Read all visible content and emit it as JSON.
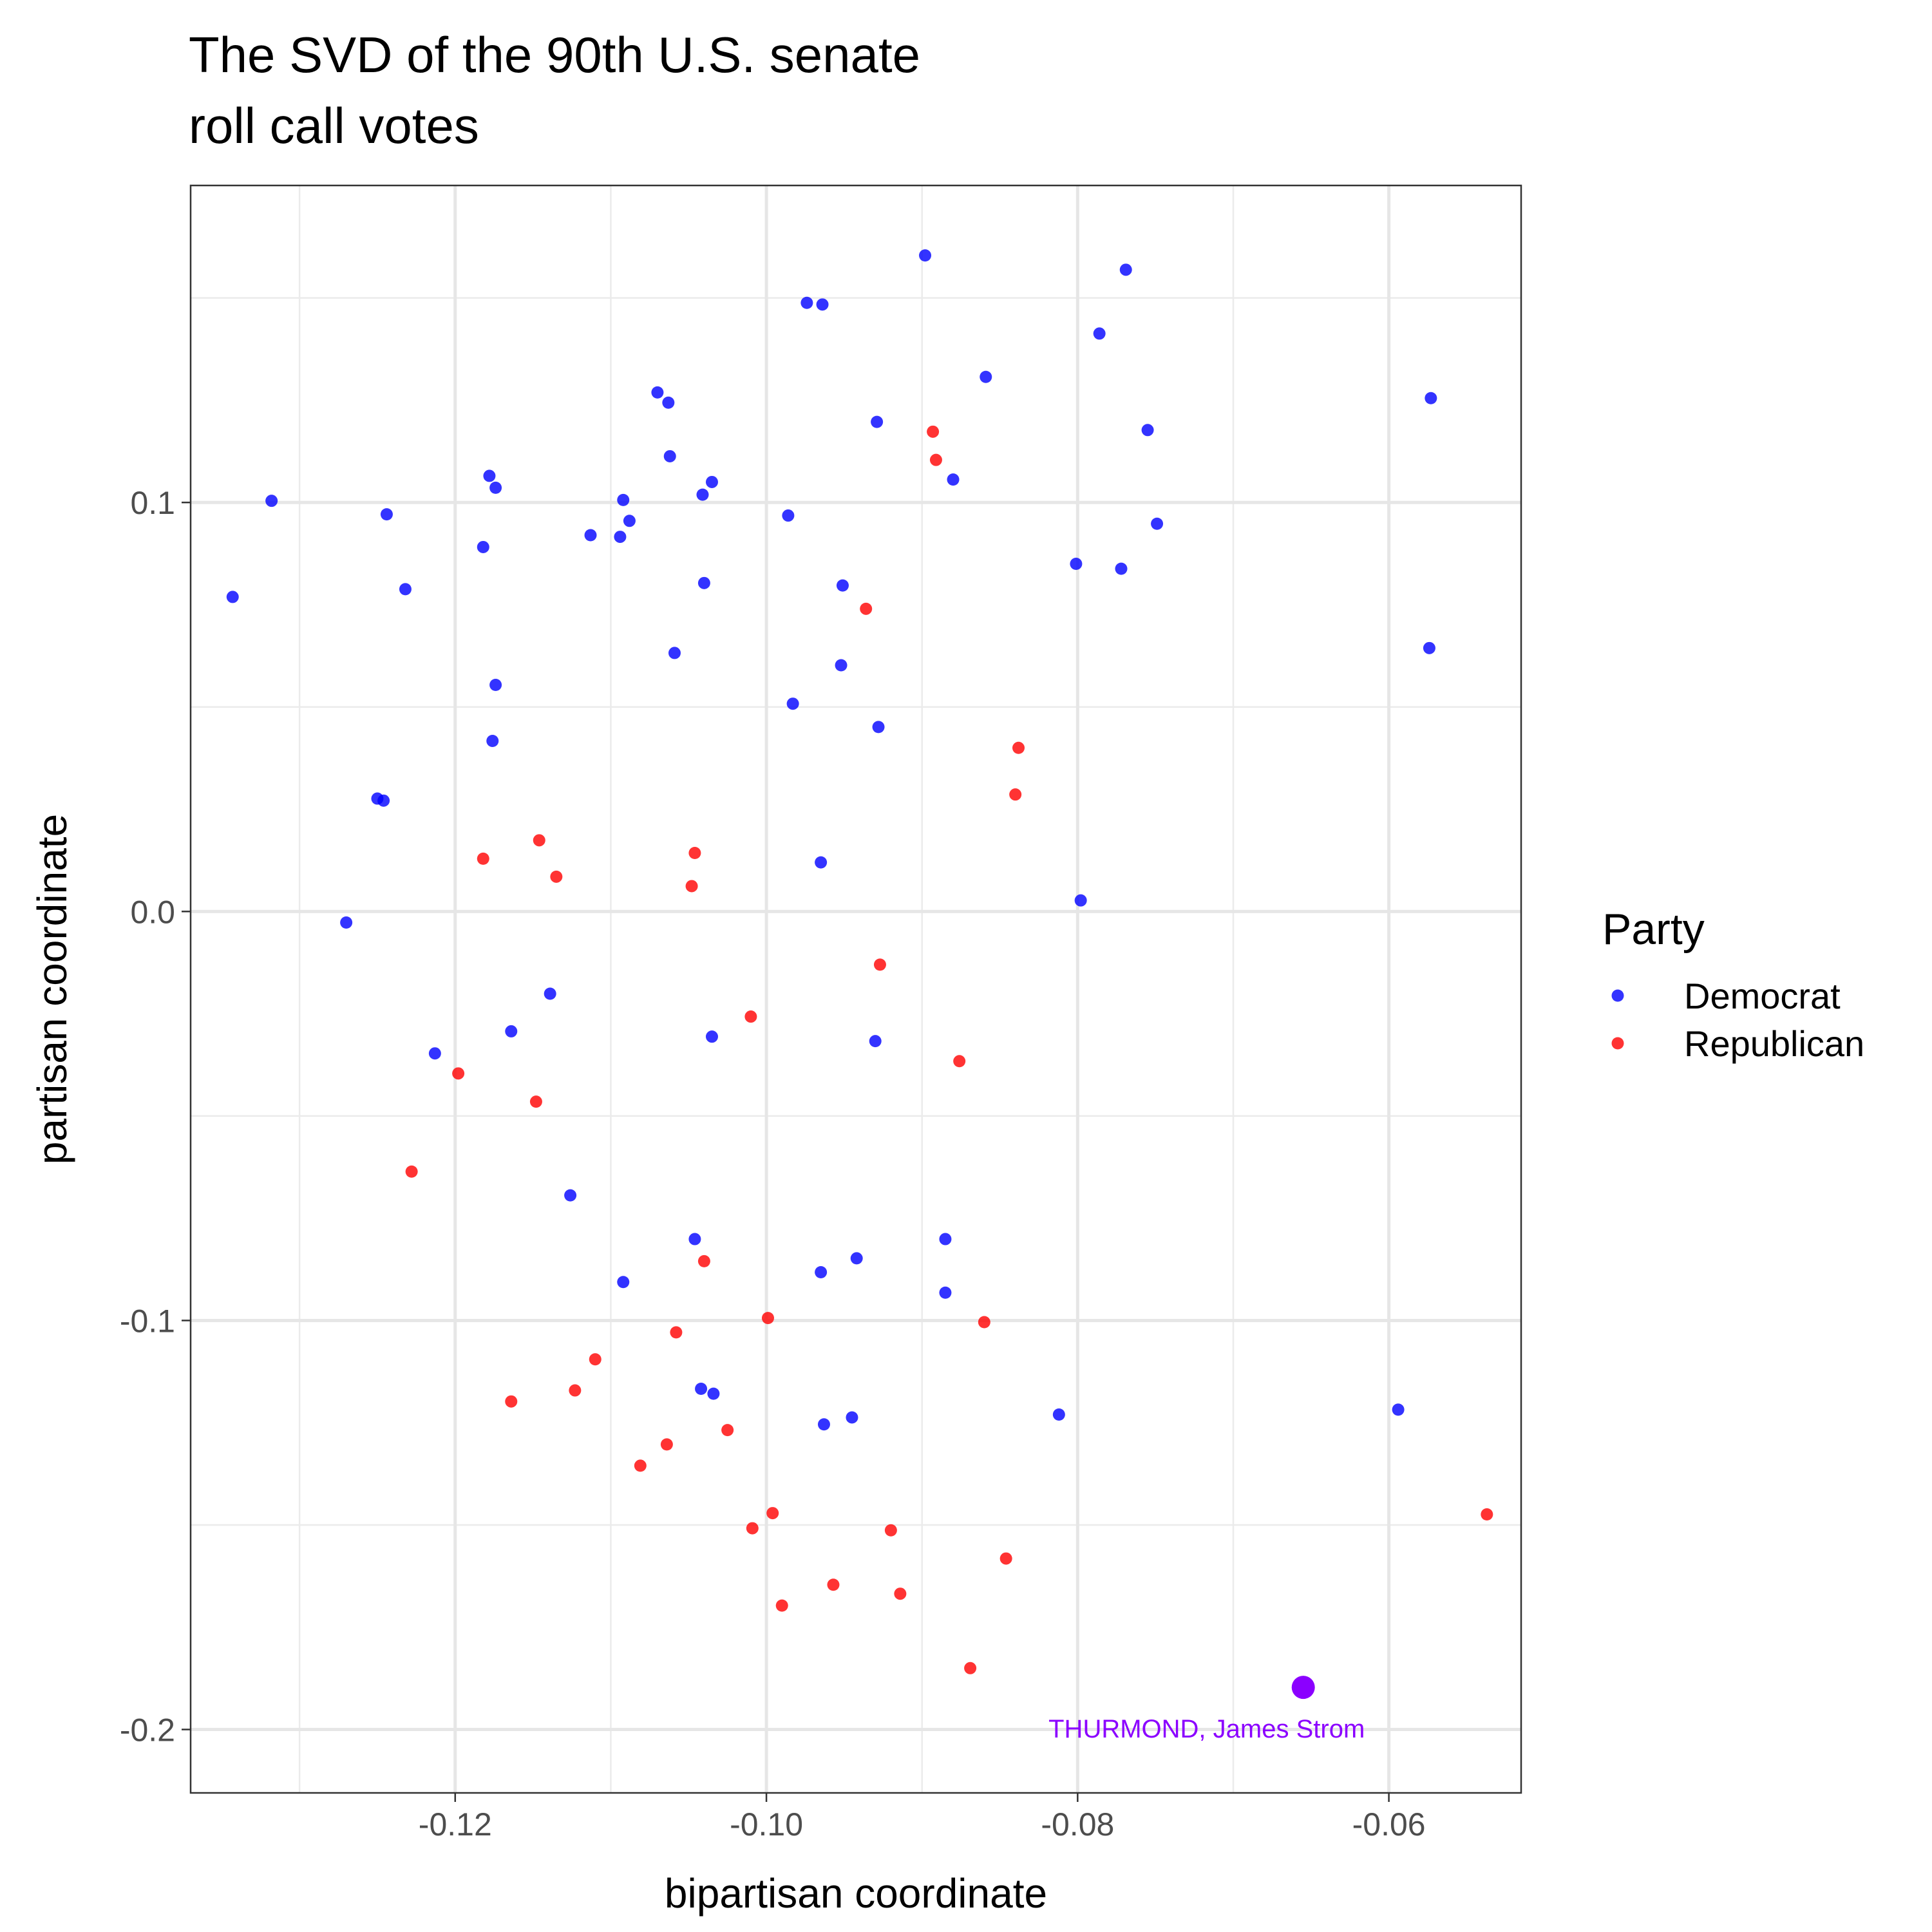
{
  "chart_data": {
    "type": "scatter",
    "title": [
      "The SVD of the 90th U.S. senate",
      "roll call votes"
    ],
    "xlabel": "bipartisan coordinate",
    "ylabel": "partisan coordinate",
    "xlim": [
      -0.137,
      -0.0515
    ],
    "ylim": [
      -0.2155,
      0.1775
    ],
    "x_ticks": [
      -0.12,
      -0.1,
      -0.08,
      -0.06
    ],
    "x_tick_labels": [
      "-0.12",
      "-0.10",
      "-0.08",
      "-0.06"
    ],
    "y_ticks": [
      -0.2,
      -0.1,
      0.0,
      0.1
    ],
    "y_tick_labels": [
      "-0.2",
      "-0.1",
      "0.0",
      "0.1"
    ],
    "grid": true,
    "legend": {
      "title": "Party",
      "position": "right",
      "entries": [
        {
          "label": "Democrat",
          "color": "#0000ff"
        },
        {
          "label": "Republican",
          "color": "#ff0000"
        }
      ]
    },
    "series": [
      {
        "name": "Democrat",
        "color": "#0000ff",
        "points": [
          [
            -0.0898,
            0.1604
          ],
          [
            -0.0769,
            0.1569
          ],
          [
            -0.0974,
            0.1488
          ],
          [
            -0.0964,
            0.1484
          ],
          [
            -0.0786,
            0.1413
          ],
          [
            -0.0859,
            0.1307
          ],
          [
            -0.0573,
            0.1255
          ],
          [
            -0.107,
            0.1269
          ],
          [
            -0.1063,
            0.1244
          ],
          [
            -0.0929,
            0.1197
          ],
          [
            -0.0755,
            0.1177
          ],
          [
            -0.1062,
            0.1113
          ],
          [
            -0.1178,
            0.1065
          ],
          [
            -0.1174,
            0.1036
          ],
          [
            -0.1035,
            0.105
          ],
          [
            -0.088,
            0.1056
          ],
          [
            -0.1318,
            0.1004
          ],
          [
            -0.1041,
            0.1019
          ],
          [
            -0.1092,
            0.1006
          ],
          [
            -0.1244,
            0.0971
          ],
          [
            -0.0986,
            0.0968
          ],
          [
            -0.1088,
            0.0955
          ],
          [
            -0.0749,
            0.0948
          ],
          [
            -0.1113,
            0.092
          ],
          [
            -0.1094,
            0.0916
          ],
          [
            -0.1182,
            0.0891
          ],
          [
            -0.0801,
            0.085
          ],
          [
            -0.0772,
            0.0838
          ],
          [
            -0.1232,
            0.0788
          ],
          [
            -0.104,
            0.0803
          ],
          [
            -0.0951,
            0.0797
          ],
          [
            -0.1343,
            0.0769
          ],
          [
            -0.0574,
            0.0644
          ],
          [
            -0.1059,
            0.0632
          ],
          [
            -0.0952,
            0.0602
          ],
          [
            -0.1174,
            0.0554
          ],
          [
            -0.0983,
            0.0508
          ],
          [
            -0.0928,
            0.0451
          ],
          [
            -0.1176,
            0.0417
          ],
          [
            -0.125,
            0.0276
          ],
          [
            -0.1246,
            0.0271
          ],
          [
            -0.0965,
            0.012
          ],
          [
            -0.0798,
            0.0027
          ],
          [
            -0.127,
            -0.0027
          ],
          [
            -0.1139,
            -0.0201
          ],
          [
            -0.1164,
            -0.0293
          ],
          [
            -0.1035,
            -0.0306
          ],
          [
            -0.093,
            -0.0317
          ],
          [
            -0.1213,
            -0.0347
          ],
          [
            -0.1126,
            -0.0694
          ],
          [
            -0.1046,
            -0.0801
          ],
          [
            -0.0885,
            -0.0801
          ],
          [
            -0.0942,
            -0.0848
          ],
          [
            -0.0965,
            -0.0882
          ],
          [
            -0.1092,
            -0.0906
          ],
          [
            -0.0885,
            -0.0932
          ],
          [
            -0.1042,
            -0.1167
          ],
          [
            -0.1034,
            -0.1179
          ],
          [
            -0.0812,
            -0.123
          ],
          [
            -0.0594,
            -0.1218
          ],
          [
            -0.0945,
            -0.1237
          ],
          [
            -0.0963,
            -0.1254
          ]
        ]
      },
      {
        "name": "Republican",
        "color": "#ff0000",
        "points": [
          [
            -0.0893,
            0.1173
          ],
          [
            -0.0891,
            0.1104
          ],
          [
            -0.0936,
            0.074
          ],
          [
            -0.0838,
            0.04
          ],
          [
            -0.084,
            0.0286
          ],
          [
            -0.1146,
            0.0174
          ],
          [
            -0.1046,
            0.0143
          ],
          [
            -0.1182,
            0.0129
          ],
          [
            -0.1135,
            0.0085
          ],
          [
            -0.1048,
            0.0062
          ],
          [
            -0.0927,
            -0.013
          ],
          [
            -0.101,
            -0.0257
          ],
          [
            -0.0876,
            -0.0366
          ],
          [
            -0.1198,
            -0.0396
          ],
          [
            -0.1148,
            -0.0465
          ],
          [
            -0.1228,
            -0.0636
          ],
          [
            -0.104,
            -0.0855
          ],
          [
            -0.0999,
            -0.0994
          ],
          [
            -0.086,
            -0.1004
          ],
          [
            -0.1058,
            -0.1029
          ],
          [
            -0.111,
            -0.1095
          ],
          [
            -0.1123,
            -0.1171
          ],
          [
            -0.1164,
            -0.1198
          ],
          [
            -0.1025,
            -0.1268
          ],
          [
            -0.1064,
            -0.1303
          ],
          [
            -0.1081,
            -0.1355
          ],
          [
            -0.0996,
            -0.1471
          ],
          [
            -0.1009,
            -0.1508
          ],
          [
            -0.092,
            -0.1513
          ],
          [
            -0.0846,
            -0.1582
          ],
          [
            -0.0537,
            -0.1474
          ],
          [
            -0.0957,
            -0.1646
          ],
          [
            -0.0914,
            -0.1668
          ],
          [
            -0.099,
            -0.1697
          ],
          [
            -0.0869,
            -0.185
          ]
        ]
      }
    ],
    "highlight": {
      "point": [
        -0.0655,
        -0.1897
      ],
      "label": "THURMOND, James Strom",
      "color": "#8b00ff"
    }
  }
}
